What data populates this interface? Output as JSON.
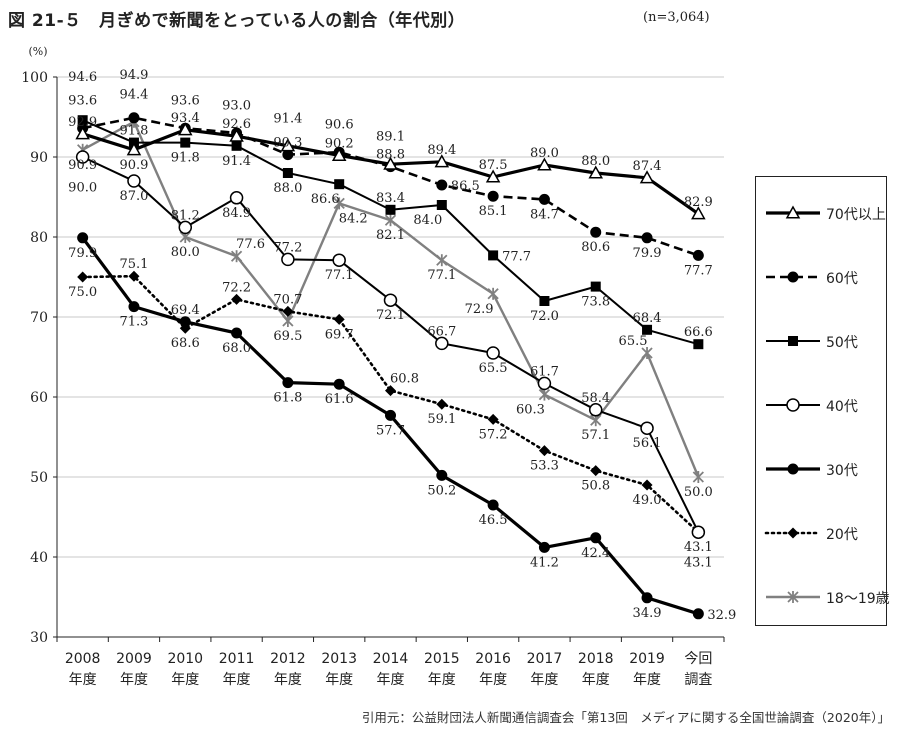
{
  "title": "図 21-５　月ぎめで新聞をとっている人の割合（年代別）",
  "sample_note": "(n=3,064)",
  "source": "引用元：公益財団法人新聞通信調査会「第13回　メディアに関する全国世論調査（2020年）」",
  "chart_data": {
    "type": "line",
    "ylabel": "(%)",
    "ylim": [
      30,
      100
    ],
    "yticks": [
      30,
      40,
      50,
      60,
      70,
      80,
      90,
      100
    ],
    "grid": true,
    "legend_position": "right",
    "categories": [
      {
        "line1": "2008",
        "line2": "年度"
      },
      {
        "line1": "2009",
        "line2": "年度"
      },
      {
        "line1": "2010",
        "line2": "年度"
      },
      {
        "line1": "2011",
        "line2": "年度"
      },
      {
        "line1": "2012",
        "line2": "年度"
      },
      {
        "line1": "2013",
        "line2": "年度"
      },
      {
        "line1": "2014",
        "line2": "年度"
      },
      {
        "line1": "2015",
        "line2": "年度"
      },
      {
        "line1": "2016",
        "line2": "年度"
      },
      {
        "line1": "2017",
        "line2": "年度"
      },
      {
        "line1": "2018",
        "line2": "年度"
      },
      {
        "line1": "2019",
        "line2": "年度"
      },
      {
        "line1": "今回",
        "line2": "調査"
      }
    ],
    "series": [
      {
        "name": "70代以上",
        "style": "solid-thick",
        "marker": "triangle-open",
        "color": "#000000",
        "values": [
          92.9,
          90.9,
          93.4,
          92.6,
          91.4,
          90.2,
          89.1,
          89.4,
          87.5,
          89.0,
          88.0,
          87.4,
          82.9
        ]
      },
      {
        "name": "60代",
        "style": "dashed",
        "marker": "circle-filled",
        "color": "#000000",
        "values": [
          93.6,
          94.9,
          93.6,
          93.0,
          90.3,
          90.6,
          88.8,
          86.5,
          85.1,
          84.7,
          80.6,
          79.9,
          77.7
        ]
      },
      {
        "name": "50代",
        "style": "solid",
        "marker": "square-filled",
        "color": "#000000",
        "values": [
          94.6,
          91.8,
          91.8,
          91.4,
          88.0,
          86.6,
          83.4,
          84.0,
          77.7,
          72.0,
          73.8,
          68.4,
          66.6
        ]
      },
      {
        "name": "40代",
        "style": "solid",
        "marker": "circle-open",
        "color": "#000000",
        "values": [
          90.0,
          87.0,
          81.2,
          84.9,
          77.2,
          77.1,
          72.1,
          66.7,
          65.5,
          61.7,
          58.4,
          56.1,
          43.1
        ]
      },
      {
        "name": "30代",
        "style": "solid-thick",
        "marker": "circle-filled",
        "color": "#000000",
        "values": [
          79.9,
          71.3,
          69.4,
          68.0,
          61.8,
          61.6,
          57.7,
          50.2,
          46.5,
          41.2,
          42.4,
          34.9,
          32.9
        ]
      },
      {
        "name": "20代",
        "style": "dotted",
        "marker": "diamond-filled",
        "color": "#000000",
        "values": [
          75.0,
          75.1,
          68.6,
          72.2,
          70.7,
          69.7,
          60.8,
          59.1,
          57.2,
          53.3,
          50.8,
          49.0,
          43.1
        ]
      },
      {
        "name": "18～19歳",
        "style": "solid-gray",
        "marker": "asterisk",
        "color": "#808080",
        "values": [
          90.9,
          94.4,
          80.0,
          77.6,
          69.5,
          84.2,
          82.1,
          77.1,
          72.9,
          60.3,
          57.1,
          65.5,
          50.0
        ]
      }
    ],
    "data_labels": [
      {
        "text": "94.6",
        "x": 0,
        "y": 94.6,
        "pos": "above3"
      },
      {
        "text": "93.6",
        "x": 0,
        "y": 93.6,
        "pos": "above2"
      },
      {
        "text": "92.9",
        "x": 0,
        "y": 92.9,
        "pos": "above1"
      },
      {
        "text": "90.9",
        "x": 0,
        "y": 90.9,
        "pos": "below1"
      },
      {
        "text": "90.0",
        "x": 0,
        "y": 90.0,
        "pos": "below2"
      },
      {
        "text": "79.9",
        "x": 0,
        "y": 79.9,
        "pos": "below1"
      },
      {
        "text": "75.0",
        "x": 0,
        "y": 75.0,
        "pos": "below1"
      },
      {
        "text": "94.9",
        "x": 1,
        "y": 94.9,
        "pos": "above3"
      },
      {
        "text": "94.4",
        "x": 1,
        "y": 94.4,
        "pos": "above2"
      },
      {
        "text": "91.8",
        "x": 1,
        "y": 91.8,
        "pos": "above1"
      },
      {
        "text": "90.9",
        "x": 1,
        "y": 90.9,
        "pos": "below1"
      },
      {
        "text": "87.0",
        "x": 1,
        "y": 87.0,
        "pos": "below1"
      },
      {
        "text": "75.1",
        "x": 1,
        "y": 75.1,
        "pos": "above1"
      },
      {
        "text": "71.3",
        "x": 1,
        "y": 71.3,
        "pos": "below1"
      },
      {
        "text": "93.6",
        "x": 2,
        "y": 93.6,
        "pos": "above2"
      },
      {
        "text": "93.4",
        "x": 2,
        "y": 93.4,
        "pos": "above1"
      },
      {
        "text": "91.8",
        "x": 2,
        "y": 91.8,
        "pos": "below1"
      },
      {
        "text": "81.2",
        "x": 2,
        "y": 81.2,
        "pos": "above1"
      },
      {
        "text": "80.0",
        "x": 2,
        "y": 80.0,
        "pos": "below1"
      },
      {
        "text": "69.4",
        "x": 2,
        "y": 69.4,
        "pos": "above1"
      },
      {
        "text": "68.6",
        "x": 2,
        "y": 68.6,
        "pos": "below1"
      },
      {
        "text": "93.0",
        "x": 3,
        "y": 93.0,
        "pos": "above2"
      },
      {
        "text": "92.6",
        "x": 3,
        "y": 92.6,
        "pos": "above1"
      },
      {
        "text": "91.4",
        "x": 3,
        "y": 91.4,
        "pos": "below1"
      },
      {
        "text": "84.9",
        "x": 3,
        "y": 84.9,
        "pos": "below1"
      },
      {
        "text": "77.6",
        "x": 3,
        "y": 77.6,
        "pos": "above1r"
      },
      {
        "text": "72.2",
        "x": 3,
        "y": 72.2,
        "pos": "above1"
      },
      {
        "text": "68.0",
        "x": 3,
        "y": 68.0,
        "pos": "below1"
      },
      {
        "text": "91.4",
        "x": 4,
        "y": 91.4,
        "pos": "above2"
      },
      {
        "text": "90.3",
        "x": 4,
        "y": 90.3,
        "pos": "above1"
      },
      {
        "text": "88.0",
        "x": 4,
        "y": 88.0,
        "pos": "below1"
      },
      {
        "text": "77.2",
        "x": 4,
        "y": 77.2,
        "pos": "above1"
      },
      {
        "text": "70.7",
        "x": 4,
        "y": 70.7,
        "pos": "above1"
      },
      {
        "text": "69.5",
        "x": 4,
        "y": 69.5,
        "pos": "below1"
      },
      {
        "text": "61.8",
        "x": 4,
        "y": 61.8,
        "pos": "below1"
      },
      {
        "text": "90.6",
        "x": 5,
        "y": 90.6,
        "pos": "above2"
      },
      {
        "text": "90.2",
        "x": 5,
        "y": 90.2,
        "pos": "above1"
      },
      {
        "text": "86.6",
        "x": 5,
        "y": 86.6,
        "pos": "below1l"
      },
      {
        "text": "84.2",
        "x": 5,
        "y": 84.2,
        "pos": "below1r"
      },
      {
        "text": "77.1",
        "x": 5,
        "y": 77.1,
        "pos": "below1"
      },
      {
        "text": "69.7",
        "x": 5,
        "y": 69.7,
        "pos": "below1"
      },
      {
        "text": "61.6",
        "x": 5,
        "y": 61.6,
        "pos": "below1"
      },
      {
        "text": "89.1",
        "x": 6,
        "y": 89.1,
        "pos": "above2"
      },
      {
        "text": "88.8",
        "x": 6,
        "y": 88.8,
        "pos": "above1"
      },
      {
        "text": "83.4",
        "x": 6,
        "y": 83.4,
        "pos": "above1"
      },
      {
        "text": "82.1",
        "x": 6,
        "y": 82.1,
        "pos": "below1"
      },
      {
        "text": "72.1",
        "x": 6,
        "y": 72.1,
        "pos": "below1"
      },
      {
        "text": "60.8",
        "x": 6,
        "y": 60.8,
        "pos": "above1r"
      },
      {
        "text": "57.7",
        "x": 6,
        "y": 57.7,
        "pos": "below1"
      },
      {
        "text": "89.4",
        "x": 7,
        "y": 89.4,
        "pos": "above1"
      },
      {
        "text": "86.5",
        "x": 7,
        "y": 86.5,
        "pos": "right"
      },
      {
        "text": "84.0",
        "x": 7,
        "y": 84.0,
        "pos": "below1l"
      },
      {
        "text": "77.1",
        "x": 7,
        "y": 77.1,
        "pos": "below1"
      },
      {
        "text": "66.7",
        "x": 7,
        "y": 66.7,
        "pos": "above1"
      },
      {
        "text": "59.1",
        "x": 7,
        "y": 59.1,
        "pos": "below1"
      },
      {
        "text": "50.2",
        "x": 7,
        "y": 50.2,
        "pos": "below1"
      },
      {
        "text": "87.5",
        "x": 8,
        "y": 87.5,
        "pos": "above1"
      },
      {
        "text": "85.1",
        "x": 8,
        "y": 85.1,
        "pos": "below1"
      },
      {
        "text": "77.7",
        "x": 8,
        "y": 77.7,
        "pos": "right"
      },
      {
        "text": "72.9",
        "x": 8,
        "y": 72.9,
        "pos": "below1l"
      },
      {
        "text": "65.5",
        "x": 8,
        "y": 65.5,
        "pos": "below1"
      },
      {
        "text": "57.2",
        "x": 8,
        "y": 57.2,
        "pos": "below1"
      },
      {
        "text": "46.5",
        "x": 8,
        "y": 46.5,
        "pos": "below1"
      },
      {
        "text": "89.0",
        "x": 9,
        "y": 89.0,
        "pos": "above1"
      },
      {
        "text": "84.7",
        "x": 9,
        "y": 84.7,
        "pos": "below1"
      },
      {
        "text": "72.0",
        "x": 9,
        "y": 72.0,
        "pos": "below1"
      },
      {
        "text": "61.7",
        "x": 9,
        "y": 61.7,
        "pos": "above1"
      },
      {
        "text": "60.3",
        "x": 9,
        "y": 60.3,
        "pos": "below1l"
      },
      {
        "text": "53.3",
        "x": 9,
        "y": 53.3,
        "pos": "below1"
      },
      {
        "text": "41.2",
        "x": 9,
        "y": 41.2,
        "pos": "below1"
      },
      {
        "text": "88.0",
        "x": 10,
        "y": 88.0,
        "pos": "above1"
      },
      {
        "text": "80.6",
        "x": 10,
        "y": 80.6,
        "pos": "below1"
      },
      {
        "text": "73.8",
        "x": 10,
        "y": 73.8,
        "pos": "below1"
      },
      {
        "text": "58.4",
        "x": 10,
        "y": 58.4,
        "pos": "above1"
      },
      {
        "text": "57.1",
        "x": 10,
        "y": 57.1,
        "pos": "below1"
      },
      {
        "text": "50.8",
        "x": 10,
        "y": 50.8,
        "pos": "below1"
      },
      {
        "text": "42.4",
        "x": 10,
        "y": 42.4,
        "pos": "below1"
      },
      {
        "text": "87.4",
        "x": 11,
        "y": 87.4,
        "pos": "above1"
      },
      {
        "text": "79.9",
        "x": 11,
        "y": 79.9,
        "pos": "below1"
      },
      {
        "text": "68.4",
        "x": 11,
        "y": 68.4,
        "pos": "above1"
      },
      {
        "text": "65.5",
        "x": 11,
        "y": 65.5,
        "pos": "above1l"
      },
      {
        "text": "56.1",
        "x": 11,
        "y": 56.1,
        "pos": "below1"
      },
      {
        "text": "49.0",
        "x": 11,
        "y": 49.0,
        "pos": "below1"
      },
      {
        "text": "34.9",
        "x": 11,
        "y": 34.9,
        "pos": "below1"
      },
      {
        "text": "82.9",
        "x": 12,
        "y": 82.9,
        "pos": "above1"
      },
      {
        "text": "77.7",
        "x": 12,
        "y": 77.7,
        "pos": "below1"
      },
      {
        "text": "66.6",
        "x": 12,
        "y": 66.6,
        "pos": "above1"
      },
      {
        "text": "50.0",
        "x": 12,
        "y": 50.0,
        "pos": "below1"
      },
      {
        "text": "43.1",
        "x": 12,
        "y": 43.1,
        "pos": "below1"
      },
      {
        "text": "43.1",
        "x": 12,
        "y": 43.1,
        "pos": "below2"
      },
      {
        "text": "32.9",
        "x": 12,
        "y": 32.9,
        "pos": "right"
      }
    ]
  }
}
